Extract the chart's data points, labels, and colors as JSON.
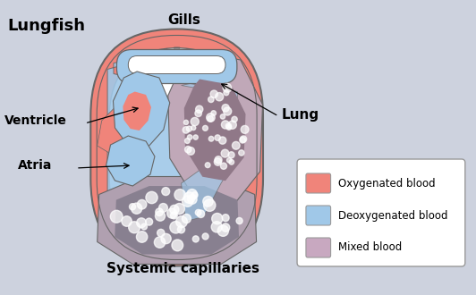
{
  "bg_color": "#cdd2de",
  "labels": {
    "title": "Lungfish",
    "gills": "Gills",
    "ventricle": "Ventricle",
    "atria": "Atria",
    "lung": "Lung",
    "systemic": "Systemic capillaries"
  },
  "legend": {
    "oxygenated": {
      "color": "#f0847a",
      "label": "Oxygenated blood"
    },
    "deoxygenated": {
      "color": "#a0c8e8",
      "label": "Deoxygenated blood"
    },
    "mixed": {
      "color": "#c8a8c0",
      "label": "Mixed blood"
    }
  },
  "colors": {
    "oxy": "#f0847a",
    "deoxy": "#a0c8e8",
    "mixed": "#c8b8c8",
    "mixed_dark": "#a090a0",
    "outline": "#666666",
    "white": "#ffffff",
    "sys_mixed": "#b0a0b0",
    "sys_dark": "#888090",
    "lung_mixed": "#c0a8b8",
    "lung_dark": "#907888"
  }
}
